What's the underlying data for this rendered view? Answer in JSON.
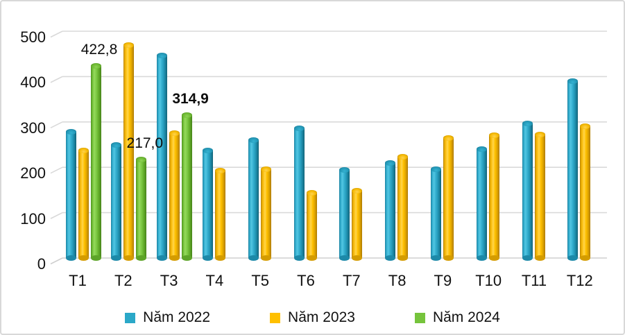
{
  "chart_data": {
    "type": "bar",
    "subtype": "3d-cylinder-clustered",
    "title": "",
    "xlabel": "",
    "ylabel": "",
    "categories": [
      "T1",
      "T2",
      "T3",
      "T4",
      "T5",
      "T6",
      "T7",
      "T8",
      "T9",
      "T10",
      "T11",
      "T12"
    ],
    "series": [
      {
        "name": "Năm 2022",
        "color": "#2BA8C8",
        "values": [
          278,
          249,
          447,
          237,
          260,
          286,
          194,
          210,
          195,
          240,
          296,
          390
        ]
      },
      {
        "name": "Năm 2023",
        "color": "#FFC000",
        "values": [
          237,
          470,
          275,
          193,
          196,
          143,
          149,
          223,
          264,
          271,
          272,
          290
        ]
      },
      {
        "name": "Năm 2024",
        "color": "#76C43C",
        "values": [
          422.8,
          217.0,
          314.9,
          null,
          null,
          null,
          null,
          null,
          null,
          null,
          null,
          null
        ]
      }
    ],
    "data_labels": [
      {
        "category": "T1",
        "series": "Năm 2024",
        "text": "422,8",
        "bold": false
      },
      {
        "category": "T2",
        "series": "Năm 2024",
        "text": "217,0",
        "bold": false
      },
      {
        "category": "T3",
        "series": "Năm 2024",
        "text": "314,9",
        "bold": true
      }
    ],
    "ylim": [
      0,
      500
    ],
    "yticks": [
      0,
      100,
      200,
      300,
      400,
      500
    ],
    "grid": true,
    "legend_position": "bottom"
  },
  "colors": {
    "grid": "#D9D9D9",
    "baseline": "#CFCFCF",
    "axis_text": "#111111",
    "background": "#FFFFFF",
    "frame_border": "#D8D8D8"
  }
}
